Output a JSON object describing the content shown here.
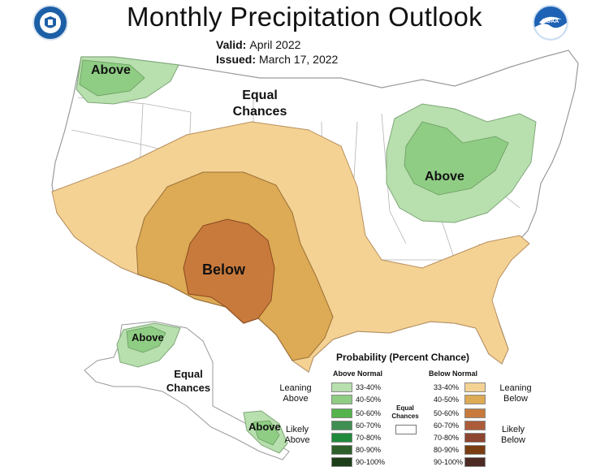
{
  "header": {
    "title": "Monthly Precipitation Outlook",
    "valid_label": "Valid:",
    "valid_value": "April 2022",
    "issued_label": "Issued:",
    "issued_value": "March 17, 2022"
  },
  "logos": {
    "left": "department-of-commerce-seal",
    "right": "noaa-logo"
  },
  "map_labels": {
    "northwest": "Above",
    "equal_chances_conus": "Equal Chances",
    "great_lakes": "Above",
    "southwest": "Below",
    "alaska_west": "Above",
    "equal_chances_alaska": "Equal Chances",
    "alaska_southeast": "Above"
  },
  "colors": {
    "above_33_40": "#b8dfae",
    "above_40_50": "#8fcd84",
    "above_50_60": "#54b34b",
    "above_60_70": "#3f8f52",
    "above_70_80": "#1f8a3b",
    "above_80_90": "#2d5f2b",
    "above_90_100": "#1b3d17",
    "below_33_40": "#f4d293",
    "below_40_50": "#ddaa55",
    "below_50_60": "#c87a3c",
    "below_60_70": "#ad5c3a",
    "below_70_80": "#8e4530",
    "below_80_90": "#7a3d12",
    "below_90_100": "#4d2a24",
    "state_line": "#9a9a9a"
  },
  "legend": {
    "title": "Probability (Percent Chance)",
    "above_header": "Above Normal",
    "below_header": "Below Normal",
    "leaning_above": "Leaning Above",
    "likely_above": "Likely Above",
    "leaning_below": "Leaning Below",
    "likely_below": "Likely Below",
    "equal_chances": "Equal Chances",
    "above_ranges": [
      "33-40%",
      "40-50%",
      "50-60%",
      "60-70%",
      "70-80%",
      "80-90%",
      "90-100%"
    ],
    "below_ranges": [
      "33-40%",
      "40-50%",
      "50-60%",
      "60-70%",
      "70-80%",
      "80-90%",
      "90-100%"
    ]
  }
}
